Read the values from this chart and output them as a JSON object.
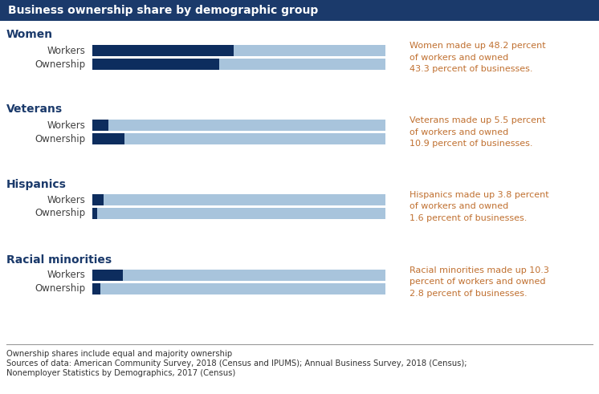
{
  "title": "Business ownership share by demographic group",
  "title_bg": "#1b3a6b",
  "title_color": "#ffffff",
  "groups": [
    {
      "label": "Women",
      "workers_pct": 48.2,
      "ownership_pct": 43.3,
      "annotation": "Women made up 48.2 percent\nof workers and owned\n43.3 percent of businesses."
    },
    {
      "label": "Veterans",
      "workers_pct": 5.5,
      "ownership_pct": 10.9,
      "annotation": "Veterans made up 5.5 percent\nof workers and owned\n10.9 percent of businesses."
    },
    {
      "label": "Hispanics",
      "workers_pct": 3.8,
      "ownership_pct": 1.6,
      "annotation": "Hispanics made up 3.8 percent\nof workers and owned\n1.6 percent of businesses."
    },
    {
      "label": "Racial minorities",
      "workers_pct": 10.3,
      "ownership_pct": 2.8,
      "annotation": "Racial minorities made up 10.3\npercent of workers and owned\n2.8 percent of businesses."
    }
  ],
  "bar_max": 100,
  "dark_blue": "#0d2d5e",
  "light_blue": "#a8c4dc",
  "group_label_color": "#1b3a6b",
  "annotation_color": "#c07030",
  "bar_row_label_color": "#404040",
  "footnote_color": "#333333",
  "footnote_line1": "Ownership shares include equal and majority ownership",
  "footnote_line2": "Sources of data: American Community Survey, 2018 (Census and IPUMS); Annual Business Survey, 2018 (Census);",
  "footnote_line3": "Nonemployer Statistics by Demographics, 2017 (Census)",
  "bar_row_labels": [
    "Workers",
    "Ownership"
  ],
  "bg_color": "#ffffff",
  "separator_color": "#999999"
}
